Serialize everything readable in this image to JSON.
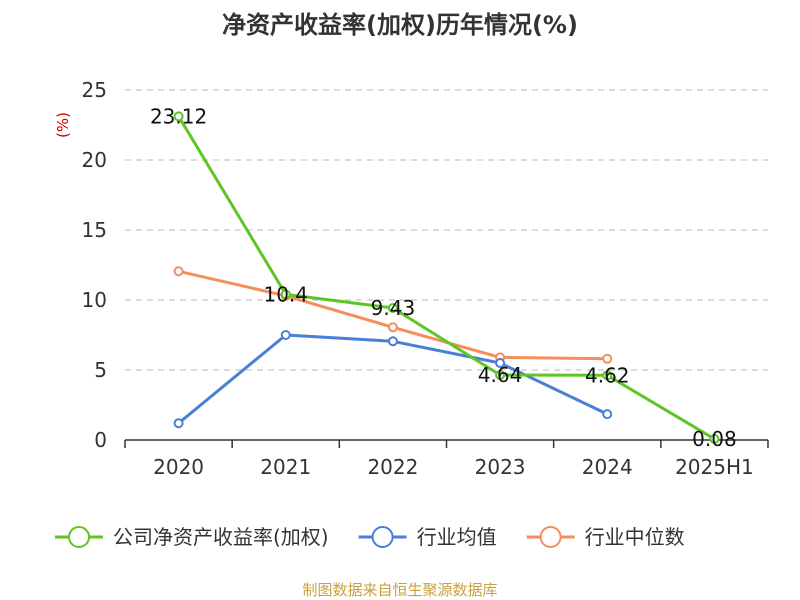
{
  "chart_data": {
    "type": "line",
    "title": "净资产收益率(加权)历年情况(%)",
    "ylabel": "(%)",
    "categories": [
      "2020",
      "2021",
      "2022",
      "2023",
      "2024",
      "2025H1"
    ],
    "ylim": [
      0,
      25
    ],
    "yticks": [
      0,
      5,
      10,
      15,
      20,
      25
    ],
    "grid": true,
    "legend_position": "bottom",
    "series": [
      {
        "name": "公司净资产收益率(加权)",
        "color": "#5cc624",
        "values": [
          23.12,
          10.4,
          9.43,
          4.64,
          4.62,
          0.08
        ],
        "labels": [
          "23.12",
          "10.4",
          "9.43",
          "4.64",
          "4.62",
          "0.08"
        ]
      },
      {
        "name": "行业均值",
        "color": "#4a7fd8",
        "values": [
          1.2,
          7.5,
          7.05,
          5.5,
          1.85,
          null
        ]
      },
      {
        "name": "行业中位数",
        "color": "#f58e5a",
        "values": [
          12.05,
          10.3,
          8.05,
          5.9,
          5.8,
          null
        ]
      }
    ]
  },
  "source": "制图数据来自恒生聚源数据库"
}
